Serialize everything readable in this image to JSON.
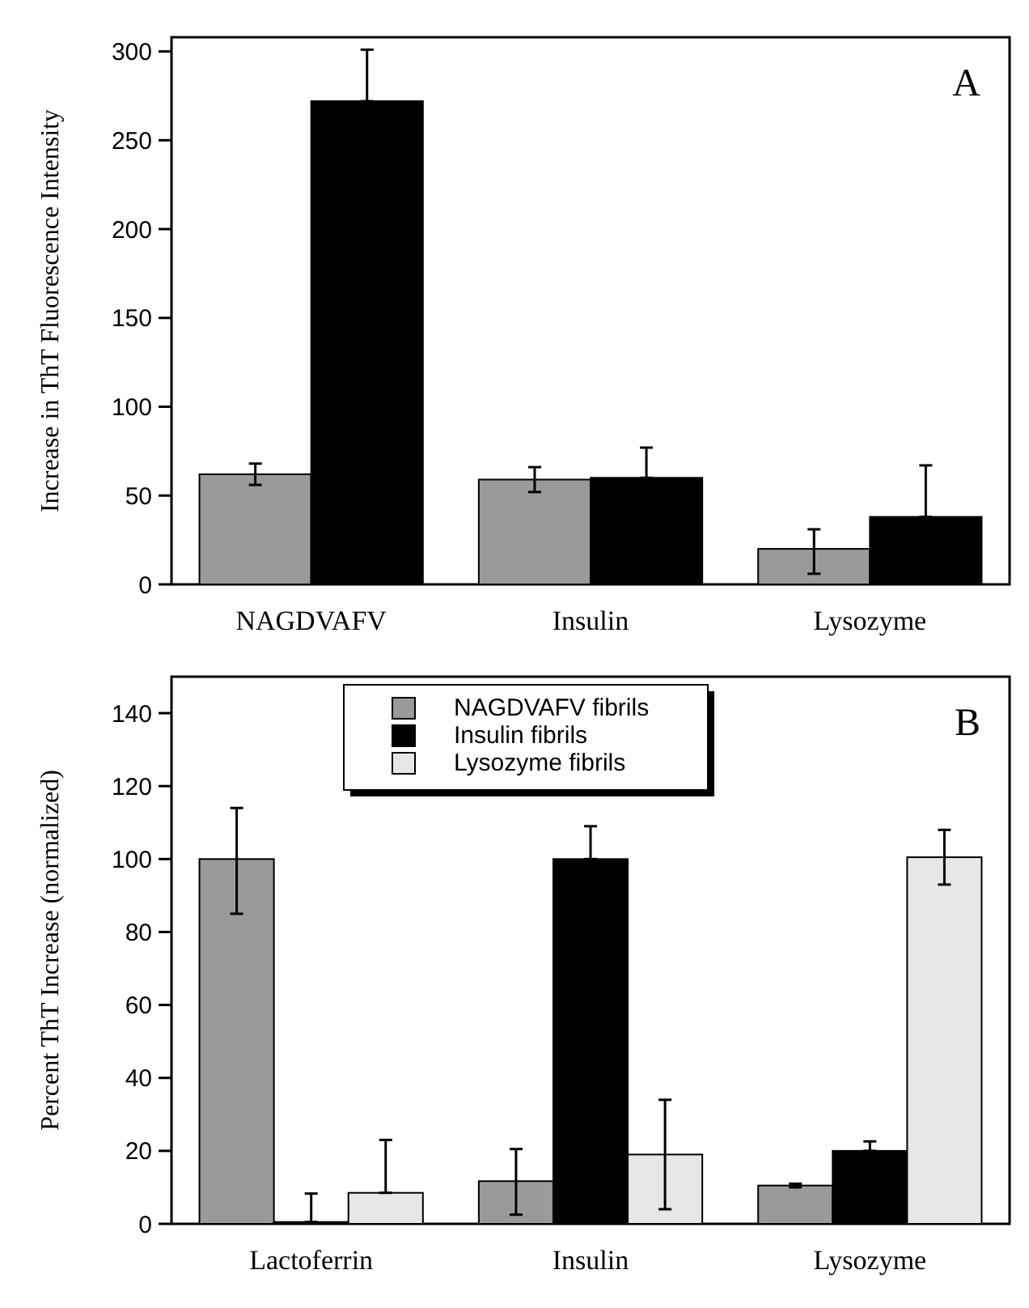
{
  "chart_data": [
    {
      "type": "bar",
      "ylabel": "Increase in ThT Fluorescence Intensity",
      "annotations": [
        "A"
      ],
      "categories": [
        "NAGDVAFV",
        "Insulin",
        "Lysozyme"
      ],
      "series": [
        {
          "color": "#9a9a9a",
          "values": [
            62,
            59,
            20
          ],
          "errors": [
            [
              56,
              68
            ],
            [
              52,
              66
            ],
            [
              6,
              31
            ]
          ]
        },
        {
          "color": "#000000",
          "values": [
            272,
            60,
            38
          ],
          "errors": [
            [
              272,
              301
            ],
            [
              60,
              77
            ],
            [
              38,
              67
            ]
          ]
        }
      ],
      "ylim": [
        0,
        308
      ],
      "yticks": [
        0,
        50,
        100,
        150,
        200,
        250,
        300
      ],
      "legend": false
    },
    {
      "type": "bar",
      "ylabel": "Percent ThT Increase (normalized)",
      "annotations": [
        "B"
      ],
      "categories": [
        "Lactoferrin",
        "Insulin",
        "Lysozyme"
      ],
      "series": [
        {
          "name": "NAGDVAFV fibrils",
          "color": "#9a9a9a",
          "values": [
            100,
            11.7,
            10.5
          ],
          "errors": [
            [
              85,
              114
            ],
            [
              2.5,
              20.5
            ],
            [
              10,
              11
            ]
          ]
        },
        {
          "name": "Insulin fibrils",
          "color": "#000000",
          "values": [
            0.5,
            100,
            20
          ],
          "errors": [
            [
              0.5,
              8.3
            ],
            [
              100,
              109
            ],
            [
              20,
              22.6
            ]
          ]
        },
        {
          "name": "Lysozyme fibrils",
          "color": "#e6e6e6",
          "values": [
            8.5,
            19,
            100.5
          ],
          "errors": [
            [
              8.5,
              23
            ],
            [
              4,
              34
            ],
            [
              93,
              108
            ]
          ]
        }
      ],
      "ylim": [
        0,
        150
      ],
      "yticks": [
        0,
        20,
        40,
        60,
        80,
        100,
        120,
        140
      ],
      "legend": "top"
    }
  ]
}
